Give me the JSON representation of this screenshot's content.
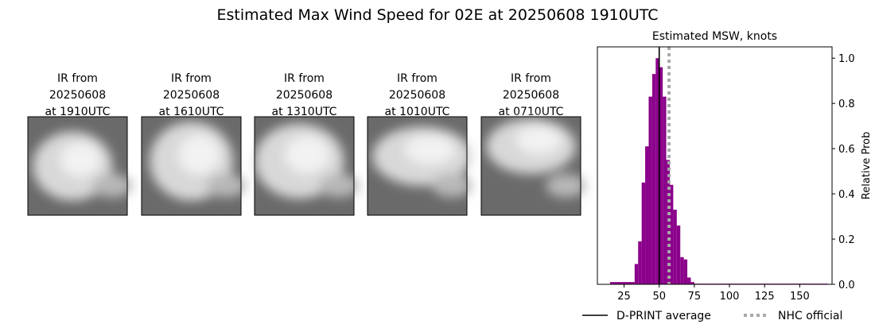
{
  "title": "Estimated Max Wind Speed for 02E at 20250608 1910UTC",
  "panels": [
    {
      "lines": [
        "IR from",
        "20250608",
        "at 1910UTC"
      ]
    },
    {
      "lines": [
        "IR from",
        "20250608",
        "at 1610UTC"
      ]
    },
    {
      "lines": [
        "IR from",
        "20250608",
        "at 1310UTC"
      ]
    },
    {
      "lines": [
        "IR from",
        "20250608",
        "at 1010UTC"
      ]
    },
    {
      "lines": [
        "IR from",
        "20250608",
        "at 0710UTC"
      ]
    }
  ],
  "chart_data": {
    "type": "histogram",
    "title": "Estimated MSW, knots",
    "y_label": "Relative Prob",
    "bins": [
      15,
      32.5,
      35,
      37.5,
      40,
      42.5,
      45,
      47.5,
      50,
      52.5,
      55,
      57.5,
      60,
      62.5,
      65,
      67.5,
      70,
      72.5,
      75,
      170
    ],
    "values": [
      0.01,
      0.09,
      0.19,
      0.45,
      0.61,
      0.83,
      0.93,
      1.0,
      0.96,
      0.83,
      0.55,
      0.44,
      0.33,
      0.26,
      0.12,
      0.11,
      0.03,
      0.01,
      0.003
    ],
    "color": "#8b008b",
    "xlim": [
      6,
      173
    ],
    "xticks": [
      25,
      50,
      75,
      100,
      125,
      150
    ],
    "ylim": [
      0,
      1.05
    ],
    "yticks": [
      {
        "value": 0,
        "label": "0.0"
      },
      {
        "value": 0.2,
        "label": "0.2"
      },
      {
        "value": 0.4,
        "label": "0.4"
      },
      {
        "value": 0.6,
        "label": "0.6"
      },
      {
        "value": 0.8,
        "label": "0.8"
      },
      {
        "value": 1,
        "label": "1.0"
      }
    ],
    "reference_lines": [
      {
        "name": "D-PRINT average",
        "value": 50,
        "color": "#000000",
        "style": "solid"
      },
      {
        "name": "NHC official",
        "value": 57,
        "color": "#a9a9a9",
        "style": "dotted"
      }
    ]
  }
}
